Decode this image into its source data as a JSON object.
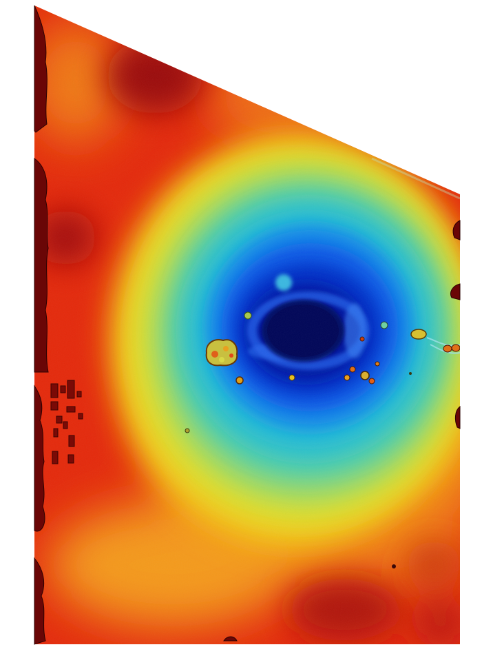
{
  "map": {
    "kind": "elevation-heatmap",
    "colormap": "jet",
    "palette": {
      "deep_blue": "#00066e",
      "blue": "#0a2ee0",
      "cyan": "#22c6d8",
      "green": "#7fd68c",
      "yellow": "#e6e02a",
      "orange": "#f08a18",
      "red": "#e0200a",
      "dark_red": "#6e0606",
      "background": "#ffffff"
    },
    "features": [
      {
        "name": "central-depression",
        "level": "lowest"
      },
      {
        "name": "shallow-basin-ring",
        "level": "low"
      },
      {
        "name": "edge-spoil-mounds",
        "level": "highest"
      },
      {
        "name": "rim-debris-piles",
        "level": "mixed"
      },
      {
        "name": "left-margin-blocks",
        "level": "high"
      }
    ],
    "legend": null,
    "labels": []
  }
}
